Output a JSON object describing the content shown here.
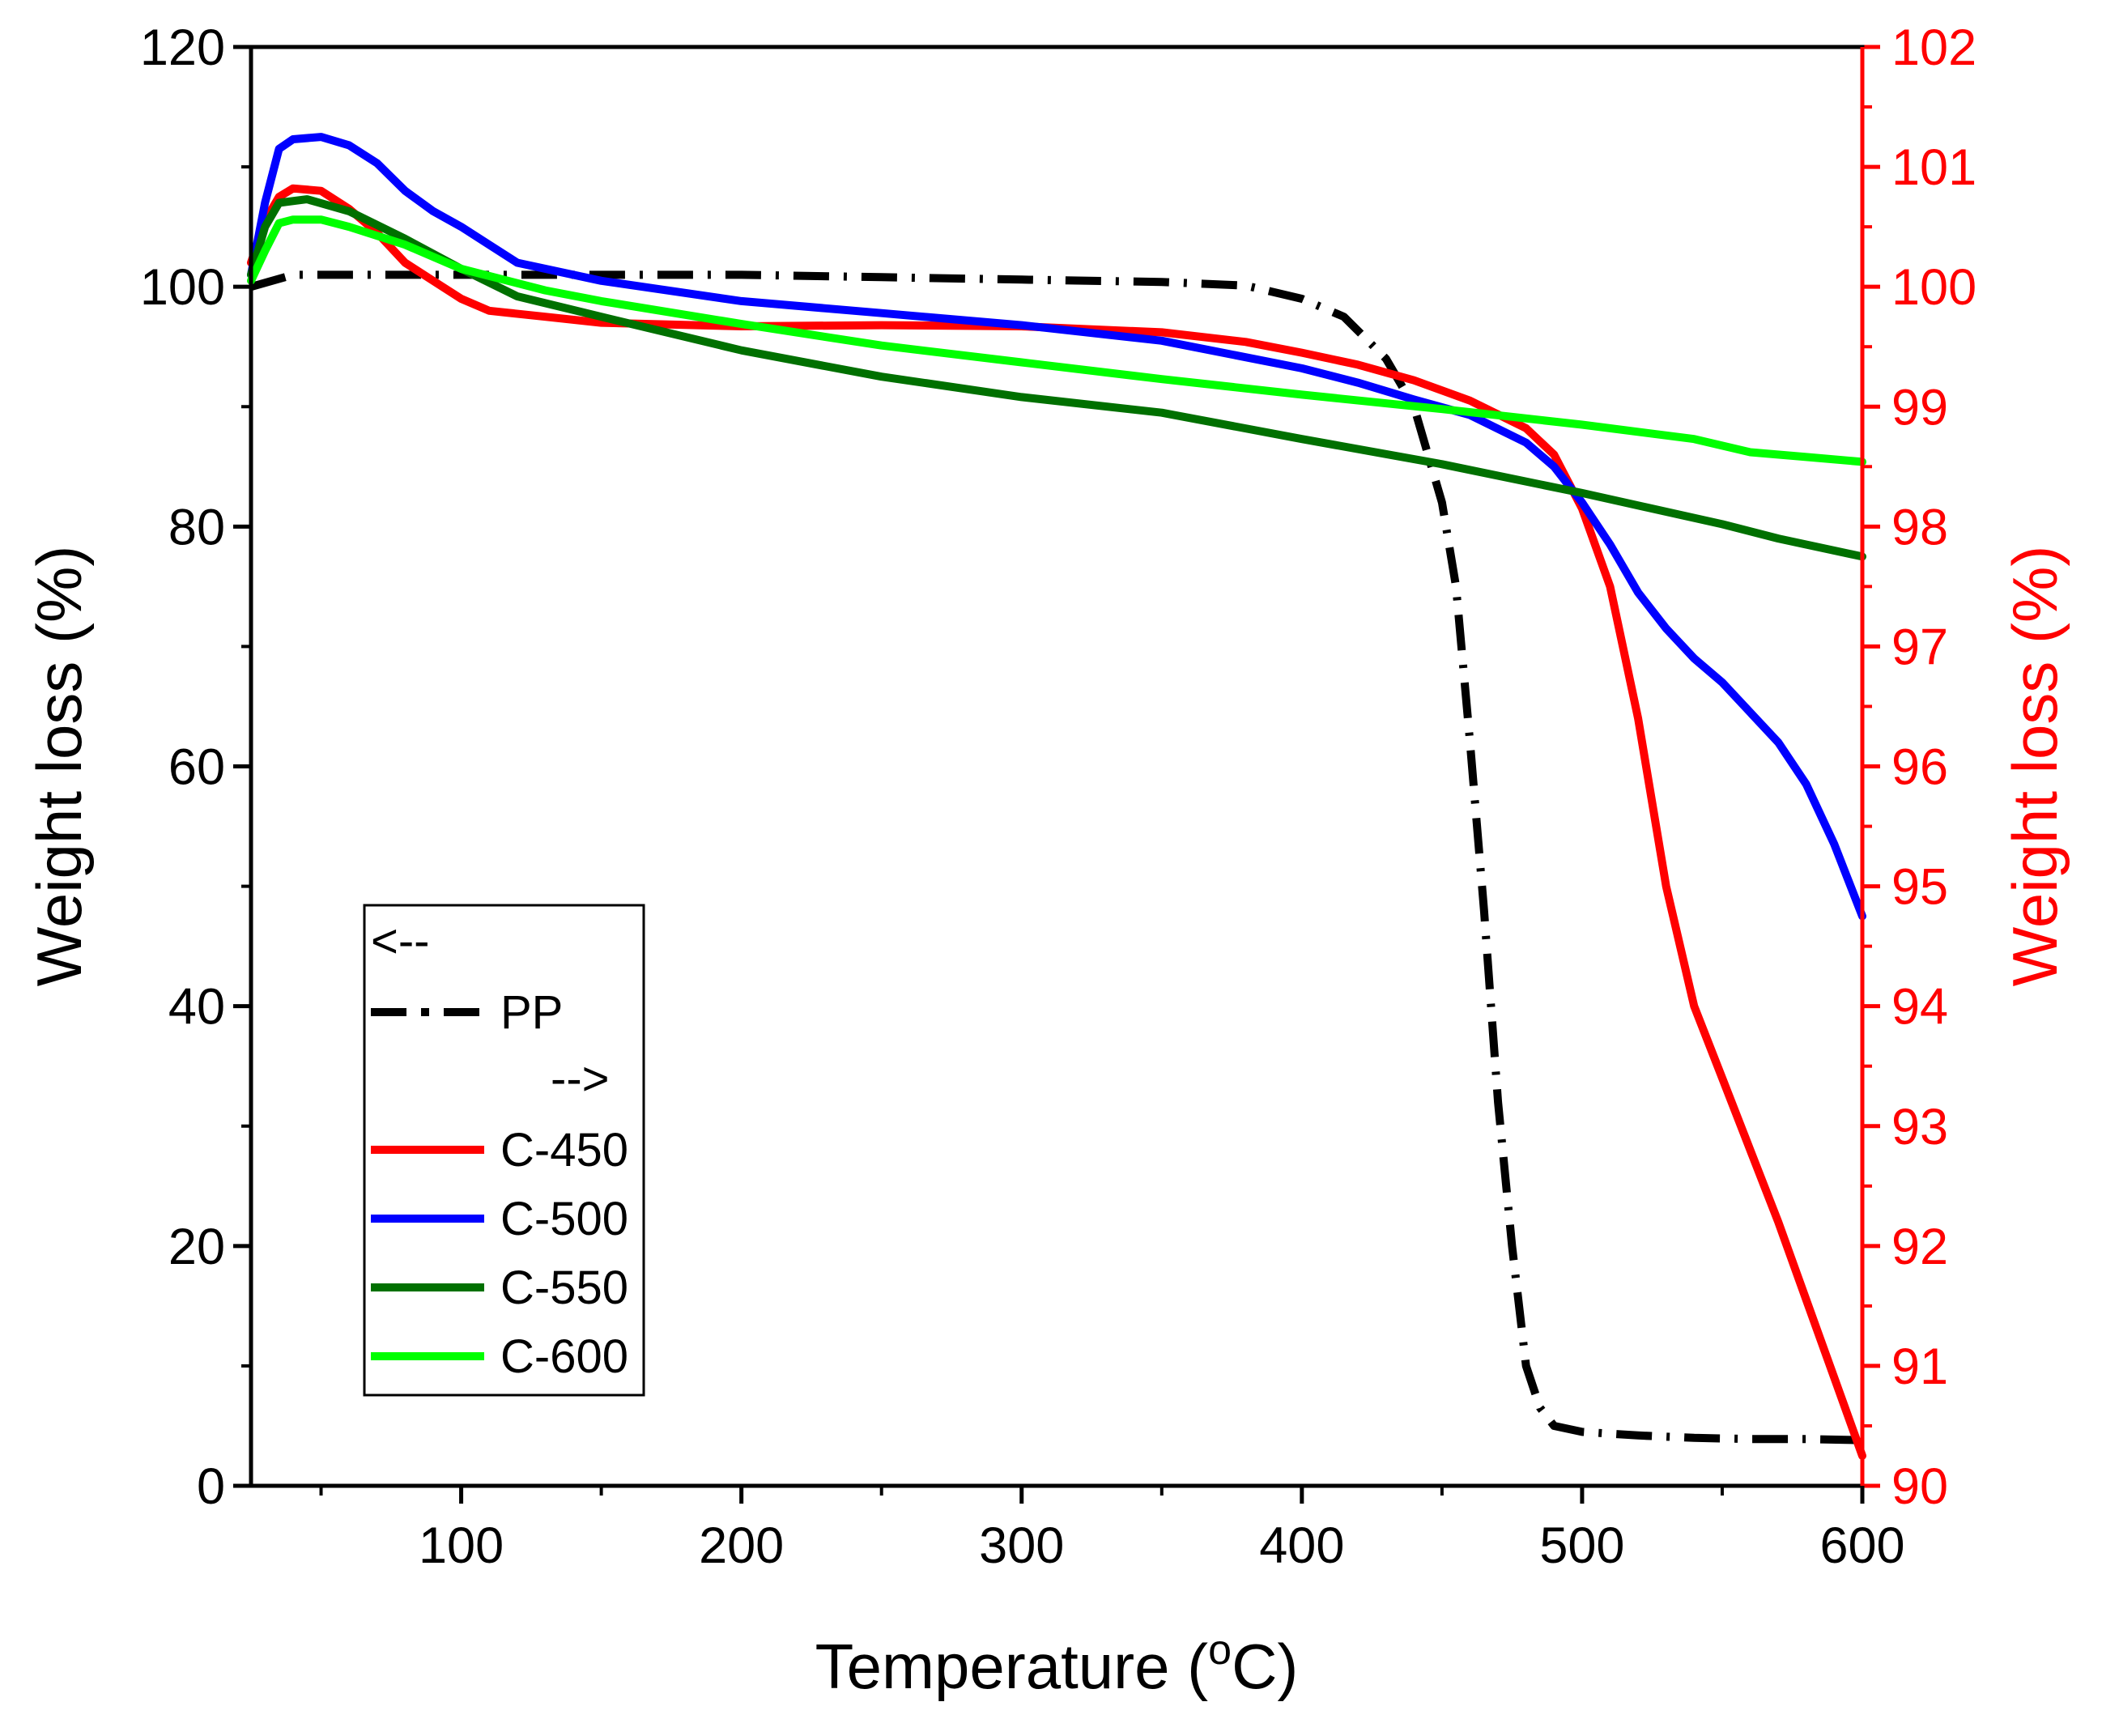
{
  "chart_data": {
    "type": "line",
    "xlabel": "Temperature (",
    "xlabel_sup": "o",
    "xlabel_end": "C)",
    "ylabel_left": "Weight loss (%)",
    "ylabel_right": "Weight loss (%)",
    "xlim": [
      25,
      600
    ],
    "ylim_left": [
      0,
      120
    ],
    "ylim_right": [
      90,
      102
    ],
    "x_ticks": [
      100,
      200,
      300,
      400,
      500,
      600
    ],
    "y_left_ticks": [
      0,
      20,
      40,
      60,
      80,
      100,
      120
    ],
    "y_right_ticks": [
      90,
      91,
      92,
      93,
      94,
      95,
      96,
      97,
      98,
      99,
      100,
      101,
      102
    ],
    "colors": {
      "left_axis": "#000000",
      "right_axis": "#ff0000"
    },
    "legend": {
      "position": "bottom-left",
      "left_marker": "<--",
      "right_marker": "-->",
      "entries": [
        {
          "name": "PP",
          "color": "#000000",
          "style": "dashdot"
        },
        {
          "name": "C-450",
          "color": "#ff0000",
          "style": "solid"
        },
        {
          "name": "C-500",
          "color": "#0000ff",
          "style": "solid"
        },
        {
          "name": "C-550",
          "color": "#007000",
          "style": "solid"
        },
        {
          "name": "C-600",
          "color": "#00ff00",
          "style": "solid"
        }
      ]
    },
    "series": [
      {
        "name": "PP",
        "axis": "left",
        "color": "#000000",
        "style": "dashdot",
        "points": [
          [
            25,
            100
          ],
          [
            40,
            101
          ],
          [
            60,
            101
          ],
          [
            100,
            101
          ],
          [
            150,
            101
          ],
          [
            200,
            101
          ],
          [
            250,
            100.8
          ],
          [
            300,
            100.6
          ],
          [
            350,
            100.4
          ],
          [
            380,
            100.1
          ],
          [
            400,
            99
          ],
          [
            415,
            97.5
          ],
          [
            430,
            94
          ],
          [
            440,
            90
          ],
          [
            445,
            86
          ],
          [
            450,
            82
          ],
          [
            455,
            75
          ],
          [
            460,
            62
          ],
          [
            465,
            48
          ],
          [
            470,
            32
          ],
          [
            475,
            20
          ],
          [
            480,
            10
          ],
          [
            485,
            6.5
          ],
          [
            490,
            5
          ],
          [
            500,
            4.5
          ],
          [
            520,
            4.2
          ],
          [
            540,
            4
          ],
          [
            560,
            3.9
          ],
          [
            580,
            3.9
          ],
          [
            600,
            3.8
          ]
        ]
      },
      {
        "name": "C-450",
        "axis": "right",
        "color": "#ff0000",
        "style": "solid",
        "points": [
          [
            25,
            100.2
          ],
          [
            30,
            100.55
          ],
          [
            35,
            100.75
          ],
          [
            40,
            100.82
          ],
          [
            50,
            100.8
          ],
          [
            60,
            100.65
          ],
          [
            70,
            100.45
          ],
          [
            80,
            100.2
          ],
          [
            90,
            100.05
          ],
          [
            100,
            99.9
          ],
          [
            110,
            99.8
          ],
          [
            130,
            99.75
          ],
          [
            150,
            99.7
          ],
          [
            200,
            99.67
          ],
          [
            250,
            99.68
          ],
          [
            300,
            99.67
          ],
          [
            350,
            99.62
          ],
          [
            380,
            99.54
          ],
          [
            400,
            99.45
          ],
          [
            420,
            99.35
          ],
          [
            440,
            99.22
          ],
          [
            460,
            99.05
          ],
          [
            480,
            98.82
          ],
          [
            490,
            98.6
          ],
          [
            500,
            98.15
          ],
          [
            510,
            97.5
          ],
          [
            520,
            96.4
          ],
          [
            530,
            95
          ],
          [
            540,
            94
          ],
          [
            550,
            93.4
          ],
          [
            560,
            92.8
          ],
          [
            570,
            92.2
          ],
          [
            580,
            91.55
          ],
          [
            590,
            90.9
          ],
          [
            600,
            90.25
          ]
        ]
      },
      {
        "name": "C-500",
        "axis": "left",
        "color": "#0000ff",
        "style": "solid",
        "points": [
          [
            25,
            101
          ],
          [
            30,
            107
          ],
          [
            35,
            111.5
          ],
          [
            40,
            112.3
          ],
          [
            50,
            112.5
          ],
          [
            60,
            111.8
          ],
          [
            70,
            110.3
          ],
          [
            80,
            108
          ],
          [
            90,
            106.3
          ],
          [
            100,
            105
          ],
          [
            110,
            103.5
          ],
          [
            120,
            102
          ],
          [
            150,
            100.5
          ],
          [
            200,
            98.8
          ],
          [
            250,
            97.8
          ],
          [
            300,
            96.8
          ],
          [
            350,
            95.5
          ],
          [
            400,
            93.2
          ],
          [
            420,
            92
          ],
          [
            440,
            90.6
          ],
          [
            460,
            89.3
          ],
          [
            480,
            87
          ],
          [
            490,
            85
          ],
          [
            500,
            82
          ],
          [
            510,
            78.5
          ],
          [
            520,
            74.5
          ],
          [
            530,
            71.5
          ],
          [
            540,
            69
          ],
          [
            550,
            67
          ],
          [
            560,
            64.5
          ],
          [
            570,
            62
          ],
          [
            580,
            58.5
          ],
          [
            590,
            53.5
          ],
          [
            600,
            47.5
          ]
        ]
      },
      {
        "name": "C-550",
        "axis": "left",
        "color": "#007000",
        "style": "solid",
        "points": [
          [
            25,
            101
          ],
          [
            30,
            105
          ],
          [
            35,
            107
          ],
          [
            45,
            107.3
          ],
          [
            60,
            106.3
          ],
          [
            80,
            104
          ],
          [
            100,
            101.5
          ],
          [
            120,
            99.2
          ],
          [
            150,
            97.5
          ],
          [
            200,
            94.7
          ],
          [
            250,
            92.5
          ],
          [
            300,
            90.8
          ],
          [
            350,
            89.5
          ],
          [
            400,
            87.3
          ],
          [
            450,
            85.2
          ],
          [
            500,
            82.8
          ],
          [
            550,
            80.2
          ],
          [
            570,
            79
          ],
          [
            600,
            77.5
          ]
        ]
      },
      {
        "name": "C-600",
        "axis": "left",
        "color": "#00ff00",
        "style": "solid",
        "points": [
          [
            25,
            100.5
          ],
          [
            30,
            103
          ],
          [
            35,
            105.3
          ],
          [
            40,
            105.6
          ],
          [
            50,
            105.6
          ],
          [
            60,
            105
          ],
          [
            80,
            103.5
          ],
          [
            100,
            101.5
          ],
          [
            130,
            99.7
          ],
          [
            150,
            98.8
          ],
          [
            200,
            96.9
          ],
          [
            250,
            95.1
          ],
          [
            300,
            93.7
          ],
          [
            350,
            92.3
          ],
          [
            400,
            91
          ],
          [
            450,
            89.8
          ],
          [
            500,
            88.5
          ],
          [
            540,
            87.3
          ],
          [
            560,
            86.2
          ],
          [
            580,
            85.8
          ],
          [
            600,
            85.4
          ]
        ]
      }
    ]
  }
}
